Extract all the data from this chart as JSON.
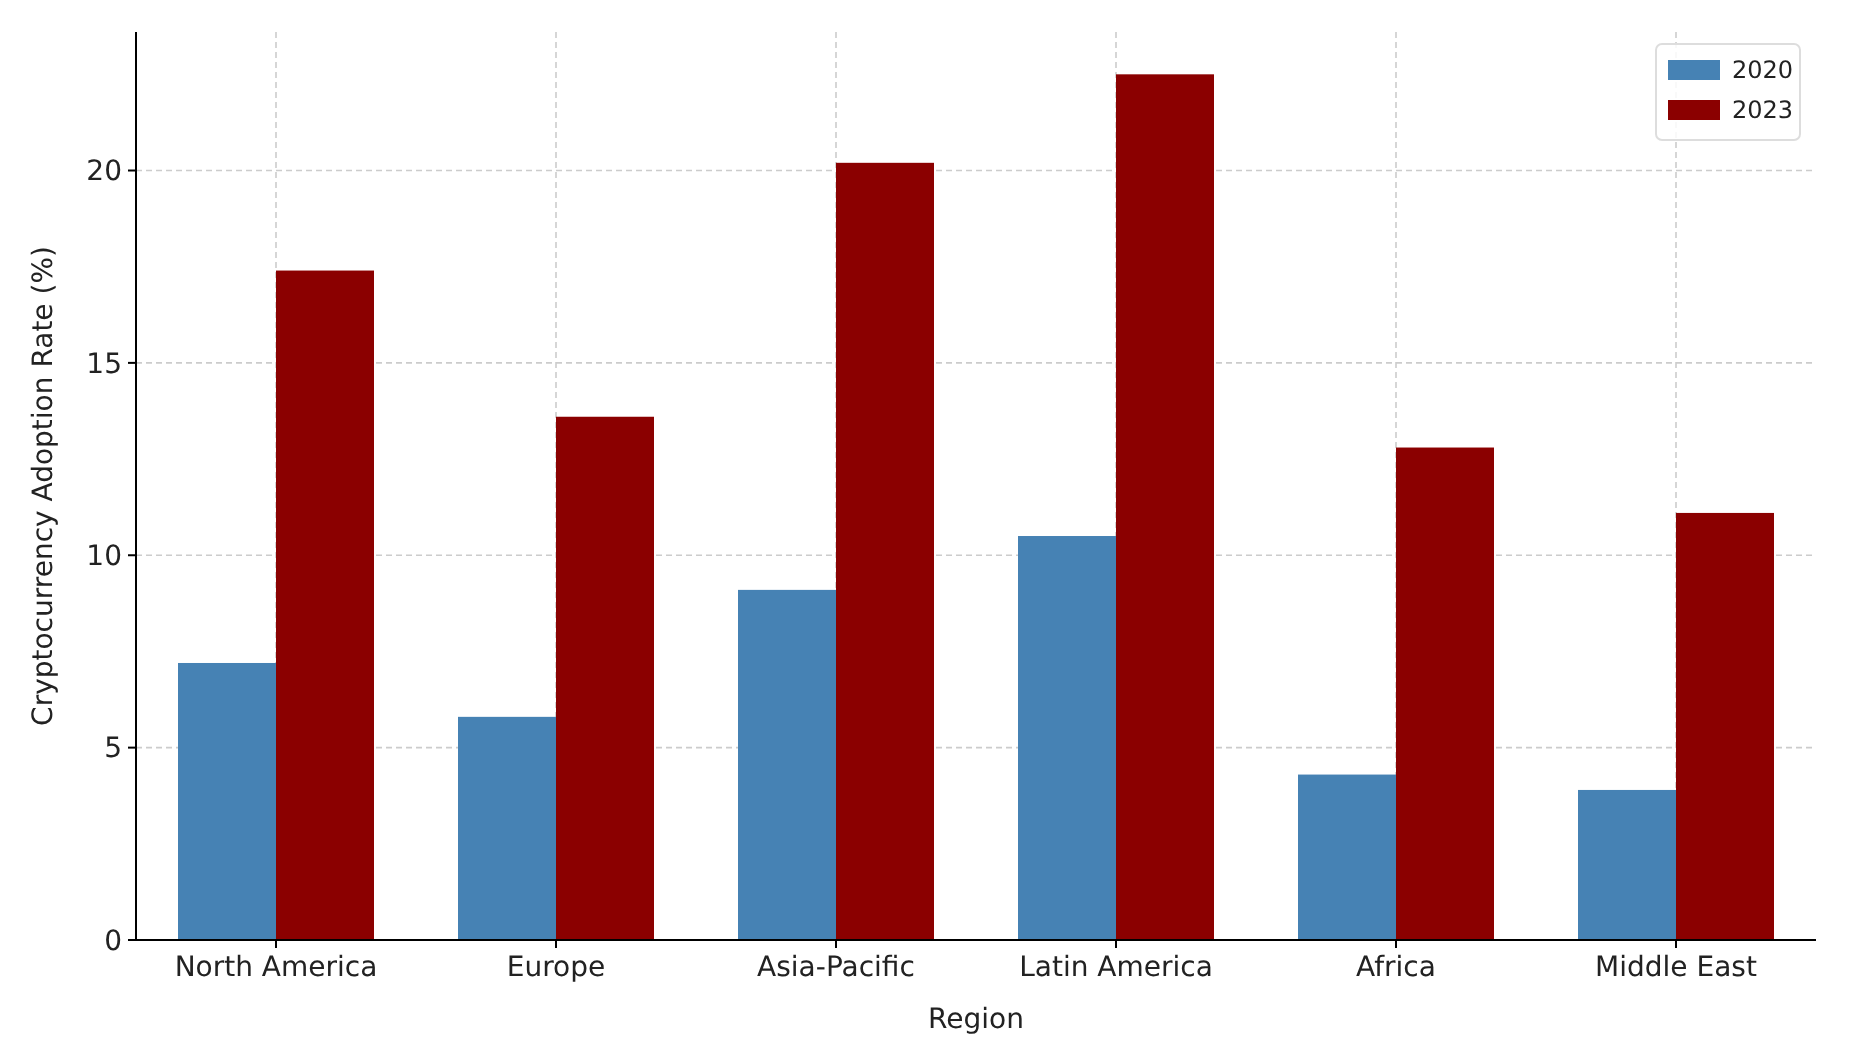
{
  "chart_data": {
    "type": "bar",
    "xlabel": "Region",
    "ylabel": "Cryptocurrency Adoption Rate (%)",
    "categories": [
      "North America",
      "Europe",
      "Asia-Pacific",
      "Latin America",
      "Africa",
      "Middle East"
    ],
    "series": [
      {
        "name": "2020",
        "color": "#4682b4",
        "values": [
          7.2,
          5.8,
          9.1,
          10.5,
          4.3,
          3.9
        ]
      },
      {
        "name": "2023",
        "color": "#8b0000",
        "values": [
          17.4,
          13.6,
          20.2,
          22.5,
          12.8,
          11.1
        ]
      }
    ],
    "ylim": [
      0,
      23.6
    ],
    "yticks": [
      0,
      5,
      10,
      15,
      20
    ],
    "grid": true,
    "legend": "top right"
  }
}
